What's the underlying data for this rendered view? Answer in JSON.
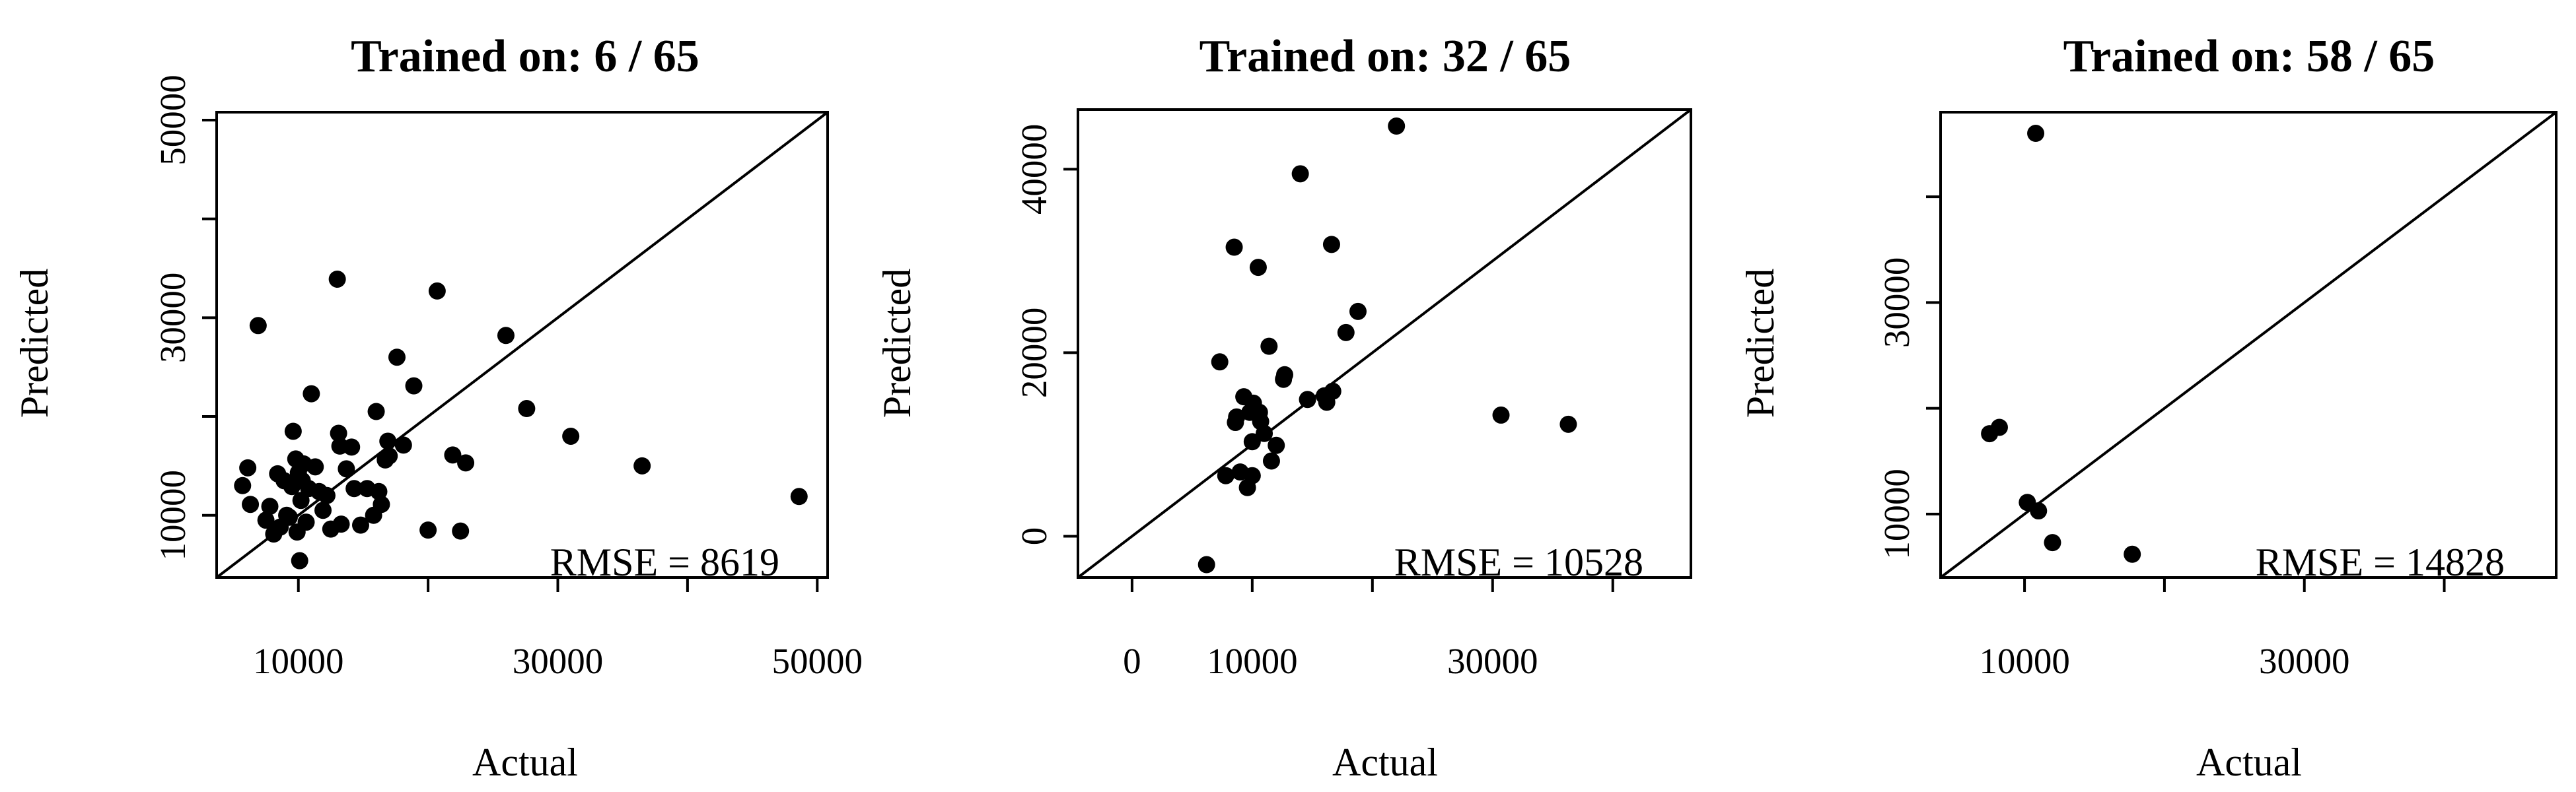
{
  "chart_data": [
    {
      "type": "scatter",
      "title": "Trained on: 6 / 65",
      "xlabel": "Actual",
      "ylabel": "Predicted",
      "annotation": "RMSE = 8619",
      "xlim": [
        3700,
        50800
      ],
      "ylim": [
        3700,
        50800
      ],
      "xticks": [
        10000,
        20000,
        30000,
        40000,
        50000
      ],
      "xtick_labels": [
        "10000",
        "",
        "30000",
        "",
        "50000"
      ],
      "yticks": [
        10000,
        20000,
        30000,
        40000,
        50000
      ],
      "ytick_labels": [
        "10000",
        "",
        "30000",
        "",
        "50000"
      ],
      "reference_line": "y = x",
      "points": [
        [
          5700,
          13000
        ],
        [
          6100,
          14800
        ],
        [
          6300,
          11100
        ],
        [
          6900,
          29200
        ],
        [
          7500,
          9500
        ],
        [
          7800,
          10900
        ],
        [
          8100,
          8100
        ],
        [
          8400,
          14200
        ],
        [
          8600,
          8800
        ],
        [
          8900,
          13500
        ],
        [
          9100,
          10000
        ],
        [
          9300,
          9800
        ],
        [
          9500,
          12900
        ],
        [
          9600,
          18500
        ],
        [
          9800,
          15700
        ],
        [
          9900,
          8300
        ],
        [
          10000,
          14300
        ],
        [
          10100,
          5400
        ],
        [
          10200,
          11500
        ],
        [
          10300,
          13500
        ],
        [
          10400,
          15200
        ],
        [
          10600,
          9300
        ],
        [
          10800,
          12700
        ],
        [
          11000,
          22300
        ],
        [
          11300,
          14900
        ],
        [
          11600,
          12400
        ],
        [
          11900,
          10500
        ],
        [
          12200,
          12000
        ],
        [
          12500,
          8600
        ],
        [
          13000,
          33900
        ],
        [
          13100,
          18300
        ],
        [
          13200,
          17000
        ],
        [
          13300,
          9100
        ],
        [
          13700,
          14700
        ],
        [
          14100,
          16900
        ],
        [
          14300,
          12700
        ],
        [
          14800,
          9000
        ],
        [
          15300,
          12700
        ],
        [
          15800,
          10000
        ],
        [
          16000,
          20500
        ],
        [
          16200,
          12400
        ],
        [
          16400,
          11100
        ],
        [
          16700,
          15600
        ],
        [
          16900,
          17500
        ],
        [
          17000,
          16000
        ],
        [
          17600,
          26000
        ],
        [
          18100,
          17100
        ],
        [
          18900,
          23100
        ],
        [
          20000,
          8500
        ],
        [
          20700,
          32700
        ],
        [
          21900,
          16100
        ],
        [
          22500,
          8400
        ],
        [
          22900,
          15300
        ],
        [
          26000,
          28200
        ],
        [
          27600,
          20800
        ],
        [
          31000,
          18000
        ],
        [
          36500,
          15000
        ],
        [
          48600,
          11900
        ]
      ]
    },
    {
      "type": "scatter",
      "title": "Trained on: 32 / 65",
      "xlabel": "Actual",
      "ylabel": "Predicted",
      "annotation": "RMSE = 10528",
      "xlim": [
        -4500,
        46500
      ],
      "ylim": [
        -4500,
        46500
      ],
      "xticks": [
        0,
        10000,
        20000,
        30000,
        40000
      ],
      "xtick_labels": [
        "0",
        "10000",
        "",
        "30000",
        ""
      ],
      "yticks": [
        0,
        20000,
        40000
      ],
      "ytick_labels": [
        "0",
        "20000",
        "40000"
      ],
      "reference_line": "y = x",
      "points": [
        [
          6200,
          -3100
        ],
        [
          7300,
          19000
        ],
        [
          7800,
          6600
        ],
        [
          8500,
          31500
        ],
        [
          8600,
          12400
        ],
        [
          8700,
          13000
        ],
        [
          9000,
          7000
        ],
        [
          9300,
          15200
        ],
        [
          9600,
          5300
        ],
        [
          9800,
          13500
        ],
        [
          10000,
          6600
        ],
        [
          10000,
          10300
        ],
        [
          10100,
          14500
        ],
        [
          10500,
          29300
        ],
        [
          10600,
          13500
        ],
        [
          10700,
          12500
        ],
        [
          11000,
          11200
        ],
        [
          11400,
          20700
        ],
        [
          11600,
          8200
        ],
        [
          12000,
          9900
        ],
        [
          12600,
          17100
        ],
        [
          12700,
          17600
        ],
        [
          14000,
          39500
        ],
        [
          14600,
          14900
        ],
        [
          16000,
          15300
        ],
        [
          16200,
          14600
        ],
        [
          16600,
          31800
        ],
        [
          16700,
          15800
        ],
        [
          17800,
          22200
        ],
        [
          18800,
          24500
        ],
        [
          22000,
          44700
        ],
        [
          30700,
          13200
        ],
        [
          36300,
          12200
        ]
      ]
    },
    {
      "type": "scatter",
      "title": "Trained on: 58 / 65",
      "xlabel": "Actual",
      "ylabel": "Predicted",
      "annotation": "RMSE = 14828",
      "xlim": [
        4000,
        48000
      ],
      "ylim": [
        4000,
        48000
      ],
      "xticks": [
        10000,
        20000,
        30000,
        40000
      ],
      "xtick_labels": [
        "10000",
        "",
        "30000",
        ""
      ],
      "yticks": [
        10000,
        20000,
        30000,
        40000
      ],
      "ytick_labels": [
        "10000",
        "",
        "30000",
        ""
      ],
      "reference_line": "y = x",
      "points": [
        [
          7500,
          17600
        ],
        [
          8200,
          18200
        ],
        [
          10200,
          11100
        ],
        [
          10800,
          46000
        ],
        [
          11000,
          10300
        ],
        [
          12000,
          7300
        ],
        [
          17700,
          6200
        ]
      ]
    }
  ]
}
